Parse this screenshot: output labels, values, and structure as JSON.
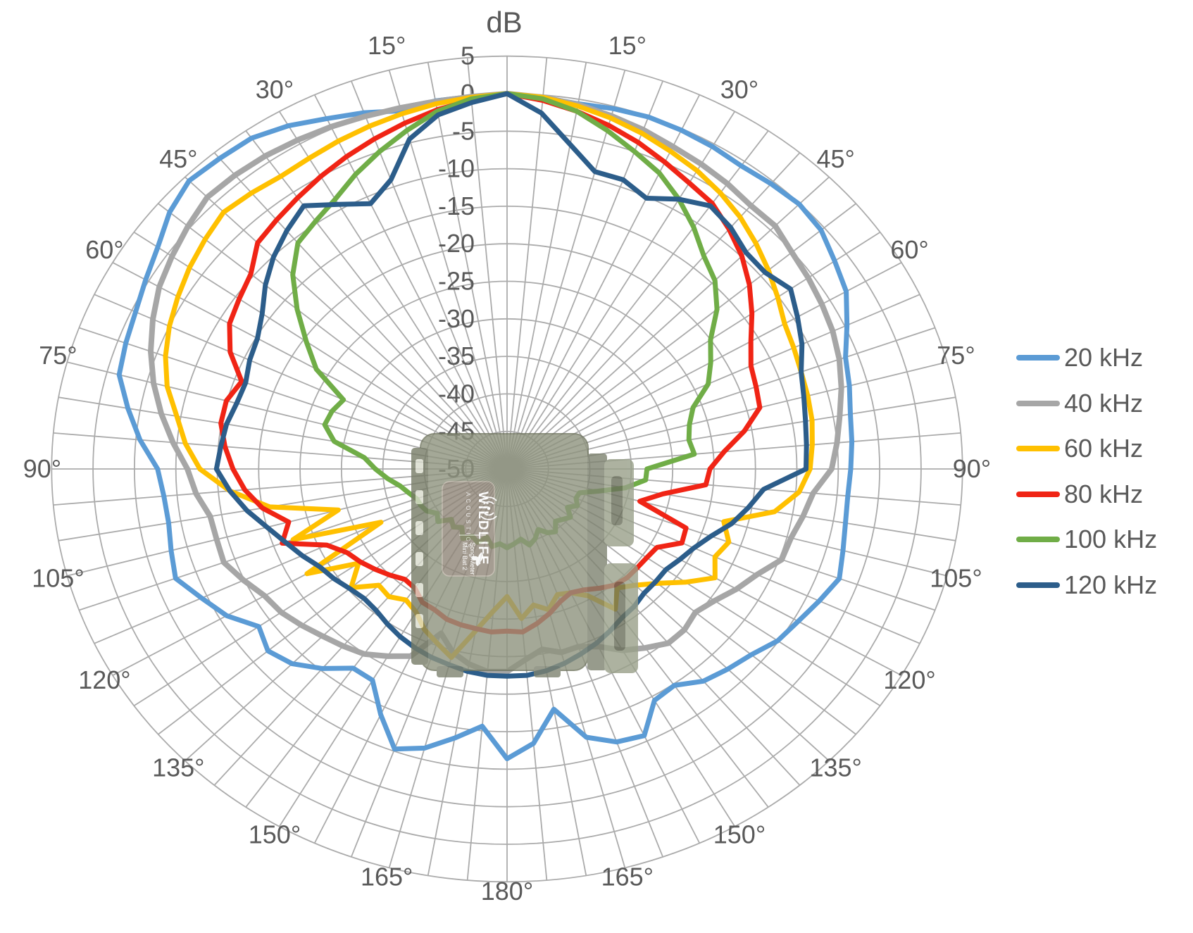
{
  "figure": {
    "kind": "polar directivity plot",
    "radial_axis_title": "dB",
    "text_color": "#595959",
    "background": "#ffffff"
  },
  "legend": {
    "position": "right",
    "items": [
      "20 kHz",
      "40 kHz",
      "60 kHz",
      "80 kHz",
      "100 kHz",
      "120 kHz"
    ]
  },
  "chart_data": {
    "type": "line",
    "subtype": "polar-radar",
    "title": "dB",
    "angle_unit": "degrees",
    "angle_zero_at": "top",
    "angle_step_deg": 5,
    "angle_label_step_deg": 15,
    "angle_labels_right": [
      "15°",
      "30°",
      "45°",
      "60°",
      "75°",
      "90°",
      "105°",
      "120°",
      "135°",
      "150°",
      "165°",
      "180°"
    ],
    "angle_labels_left": [
      "15°",
      "30°",
      "45°",
      "60°",
      "75°",
      "90°",
      "105°",
      "120°",
      "135°",
      "150°",
      "165°"
    ],
    "radial": {
      "min": -50,
      "max": 5,
      "tick_step": 5,
      "unit": "dB",
      "tick_labels": [
        "5",
        "0",
        "-5",
        "-10",
        "-15",
        "-20",
        "-25",
        "-30",
        "-35",
        "-40",
        "-45",
        "-50"
      ]
    },
    "grid": {
      "show": true,
      "color": "#ABABAB",
      "ray_step_deg": 5,
      "ring_step_db": 5
    },
    "series": [
      {
        "name": "20 kHz",
        "color": "#5B9BD5",
        "width": 7,
        "values_db_at_5deg_steps_clockwise_from_top": [
          0,
          -0.3,
          -0.6,
          -0.3,
          -0.1,
          -0.2,
          -0.4,
          -0.7,
          -0.4,
          -0.1,
          -0.5,
          -1.7,
          -2.7,
          -4.7,
          -6.5,
          -7.2,
          -7.9,
          -8.2,
          -8.5,
          -8.7,
          -8.5,
          -8,
          -7.3,
          -8.4,
          -9.4,
          -10.1,
          -11.5,
          -12.3,
          -13.1,
          -14.8,
          -14.4,
          -10.8,
          -11.3,
          -13,
          -17.5,
          -13.3,
          -11.4,
          -15.6,
          -13.6,
          -11.5,
          -10.3,
          -13.9,
          -17.5,
          -17.6,
          -15.3,
          -13.3,
          -12.3,
          -13.4,
          -10.9,
          -9.3,
          -7.4,
          -8,
          -8.5,
          -8.4,
          -7.8,
          -5.5,
          -3.5,
          -1.5,
          -1,
          -0.5,
          0.4,
          1.5,
          3.2,
          4.3,
          4,
          3.8,
          2.8,
          1.5,
          0.5,
          -0.6,
          -0.2,
          -0.2
        ]
      },
      {
        "name": "40 kHz",
        "color": "#A6A6A6",
        "width": 8,
        "values_db_at_5deg_steps_clockwise_from_top": [
          0,
          -0.3,
          -0.7,
          -1.3,
          -1.9,
          -2.6,
          -3.1,
          -3.6,
          -4.2,
          -4.2,
          -5.1,
          -5.6,
          -6.1,
          -6.6,
          -7.3,
          -8.2,
          -9.2,
          -10,
          -10.8,
          -12.9,
          -13.7,
          -14.5,
          -14.7,
          -16.7,
          -18,
          -19.4,
          -20.3,
          -19.7,
          -19.7,
          -20.9,
          -22.1,
          -23.9,
          -24.8,
          -24.7,
          -25.6,
          -24.5,
          -23,
          -22.9,
          -23.6,
          -24.7,
          -26.7,
          -22.5,
          -21.2,
          -19.9,
          -19.2,
          -18.5,
          -17.6,
          -16.7,
          -16.2,
          -14.9,
          -13.6,
          -13.7,
          -13.6,
          -12.3,
          -11.4,
          -9.5,
          -7.6,
          -5.8,
          -4.2,
          -2.8,
          -1.5,
          -0.6,
          0.3,
          1.2,
          1.1,
          0.9,
          0.6,
          0.3,
          0,
          -0.2,
          -0.3,
          -0.2
        ]
      },
      {
        "name": "60 kHz",
        "color": "#FFC000",
        "width": 7,
        "values_db_at_5deg_steps_clockwise_from_top": [
          0,
          -0.3,
          -0.9,
          -1.6,
          -2.4,
          -3.3,
          -4.1,
          -5.1,
          -6.2,
          -7.5,
          -8.8,
          -10.1,
          -11.3,
          -11.8,
          -12.2,
          -12.4,
          -12.6,
          -13,
          -13.4,
          -14.6,
          -17.2,
          -22.9,
          -21.5,
          -22.3,
          -21,
          -23.7,
          -26.3,
          -28.1,
          -29.3,
          -27.2,
          -30.5,
          -31.8,
          -32.2,
          -30.6,
          -31.6,
          -30,
          -33,
          -31,
          -28.1,
          -24,
          -25.3,
          -26.4,
          -28,
          -28.7,
          -27.8,
          -28.1,
          -25.4,
          -28.1,
          -22.1,
          -33.2,
          -22.5,
          -28.9,
          -20.9,
          -16.4,
          -12.9,
          -11,
          -9.5,
          -7.5,
          -6.1,
          -5,
          -4.1,
          -3.2,
          -2.4,
          -1.6,
          -2,
          -2.4,
          -2.2,
          -1.8,
          -1.4,
          -1,
          -0.6,
          -0.3
        ]
      },
      {
        "name": "80 kHz",
        "color": "#F02415",
        "width": 7,
        "values_db_at_5deg_steps_clockwise_from_top": [
          0,
          -0.7,
          -1.6,
          -2.6,
          -3.7,
          -4.9,
          -6,
          -6.8,
          -8.3,
          -9.9,
          -11.8,
          -13.9,
          -16,
          -17.5,
          -18,
          -18.4,
          -20.9,
          -23.7,
          -25.5,
          -25.9,
          -30.9,
          -33.4,
          -27,
          -26.7,
          -29.1,
          -29.4,
          -29.5,
          -29.5,
          -29.8,
          -30.6,
          -31.4,
          -31.8,
          -31.2,
          -30.1,
          -29.1,
          -28.2,
          -28.4,
          -28.2,
          -28.4,
          -28.5,
          -28.7,
          -29.3,
          -29.5,
          -30.6,
          -30.8,
          -30,
          -29.2,
          -28.4,
          -27.7,
          -26,
          -21.1,
          -22.7,
          -20,
          -18.2,
          -16.9,
          -15.8,
          -14.9,
          -14.9,
          -15.9,
          -13.1,
          -11.3,
          -10.5,
          -9.6,
          -7.4,
          -6.7,
          -5.9,
          -5,
          -4.1,
          -3.2,
          -2.3,
          -1.4,
          -0.7
        ]
      },
      {
        "name": "100 kHz",
        "color": "#70AD47",
        "width": 7,
        "values_db_at_5deg_steps_clockwise_from_top": [
          0,
          -0.5,
          -1.6,
          -3.3,
          -5,
          -6.5,
          -8.5,
          -10.7,
          -13,
          -14.5,
          -16.9,
          -20,
          -21.6,
          -23.2,
          -26.1,
          -27.2,
          -27.7,
          -27.3,
          -33.1,
          -33.2,
          -35.5,
          -38.6,
          -40.7,
          -40.8,
          -40.2,
          -41.1,
          -40,
          -40.5,
          -40.9,
          -39.8,
          -40.2,
          -41.1,
          -40.1,
          -39.5,
          -40.5,
          -40,
          -39.5,
          -40,
          -39.5,
          -40.6,
          -39.6,
          -40.1,
          -39.3,
          -40.5,
          -39.9,
          -40.5,
          -39.1,
          -39.7,
          -38.8,
          -38.5,
          -38.4,
          -37.7,
          -36.9,
          -35.5,
          -34.1,
          -32.7,
          -28.8,
          -27.2,
          -27.5,
          -28.2,
          -23.4,
          -20.4,
          -16.9,
          -13.4,
          -10.7,
          -9.7,
          -8.5,
          -6.7,
          -5,
          -3.3,
          -1.6,
          -0.5
        ]
      },
      {
        "name": "120 kHz",
        "color": "#2C5D8A",
        "width": 7,
        "values_db_at_5deg_steps_clockwise_from_top": [
          0,
          -2.4,
          -6.1,
          -9,
          -9,
          -10.2,
          -8.5,
          -7.2,
          -8,
          -9.2,
          -9.3,
          -8.2,
          -9.5,
          -10.7,
          -12.2,
          -12.9,
          -13.4,
          -13.7,
          -13.9,
          -18.9,
          -20.4,
          -21.9,
          -23.8,
          -25.1,
          -25.9,
          -26.6,
          -26.6,
          -26.6,
          -26.1,
          -25.8,
          -25.1,
          -24.4,
          -23.8,
          -23.2,
          -22.7,
          -22.4,
          -22.4,
          -22.4,
          -22.6,
          -23,
          -23.3,
          -23.7,
          -24.2,
          -24.8,
          -25.4,
          -25.6,
          -25.2,
          -24.5,
          -23.9,
          -22.7,
          -21.5,
          -20,
          -18.1,
          -16.4,
          -14.9,
          -15.3,
          -15.6,
          -16.2,
          -16.4,
          -15.7,
          -15.2,
          -13.9,
          -11.9,
          -10.1,
          -8.6,
          -7.2,
          -9.3,
          -11,
          -9,
          -4.5,
          -2.1,
          -1
        ]
      }
    ],
    "overlay_image": {
      "description": "semi-transparent photo of recorder device at plot center",
      "device_label_brand": "WILDLIFE",
      "device_label_sub": "ACOUSTICS",
      "device_label_model_line1": "Song Meter",
      "device_label_model_line2": "Mini Bat 2",
      "body_color": "#8E937E",
      "plate_color": "#8F8577"
    }
  }
}
